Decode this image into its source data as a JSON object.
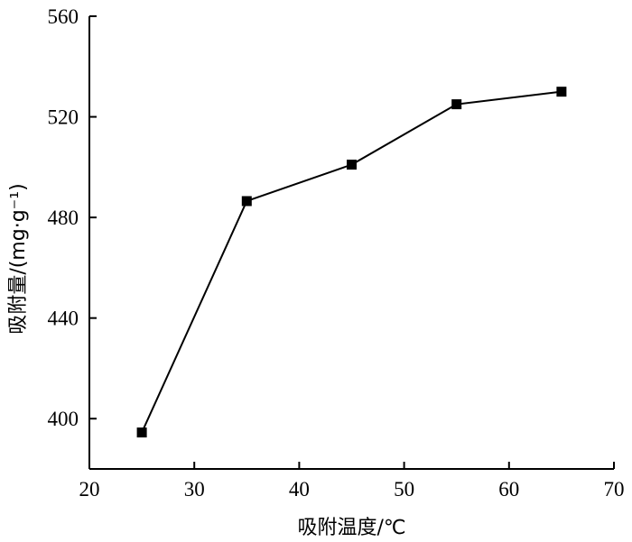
{
  "chart_data": {
    "type": "line",
    "title": "",
    "xlabel": "吸附温度/℃",
    "ylabel": "吸附量/(mg·g⁻¹)",
    "xlim": [
      20,
      70
    ],
    "ylim": [
      380,
      560
    ],
    "xticks": [
      20,
      30,
      40,
      50,
      60,
      70
    ],
    "yticks": [
      400,
      440,
      480,
      520,
      560
    ],
    "grid": false,
    "legend": "none",
    "series": [
      {
        "marker": "square",
        "color": "#000000",
        "x": [
          25,
          35,
          45,
          55,
          65
        ],
        "y": [
          394.5,
          486.5,
          501,
          525,
          530
        ]
      }
    ]
  }
}
